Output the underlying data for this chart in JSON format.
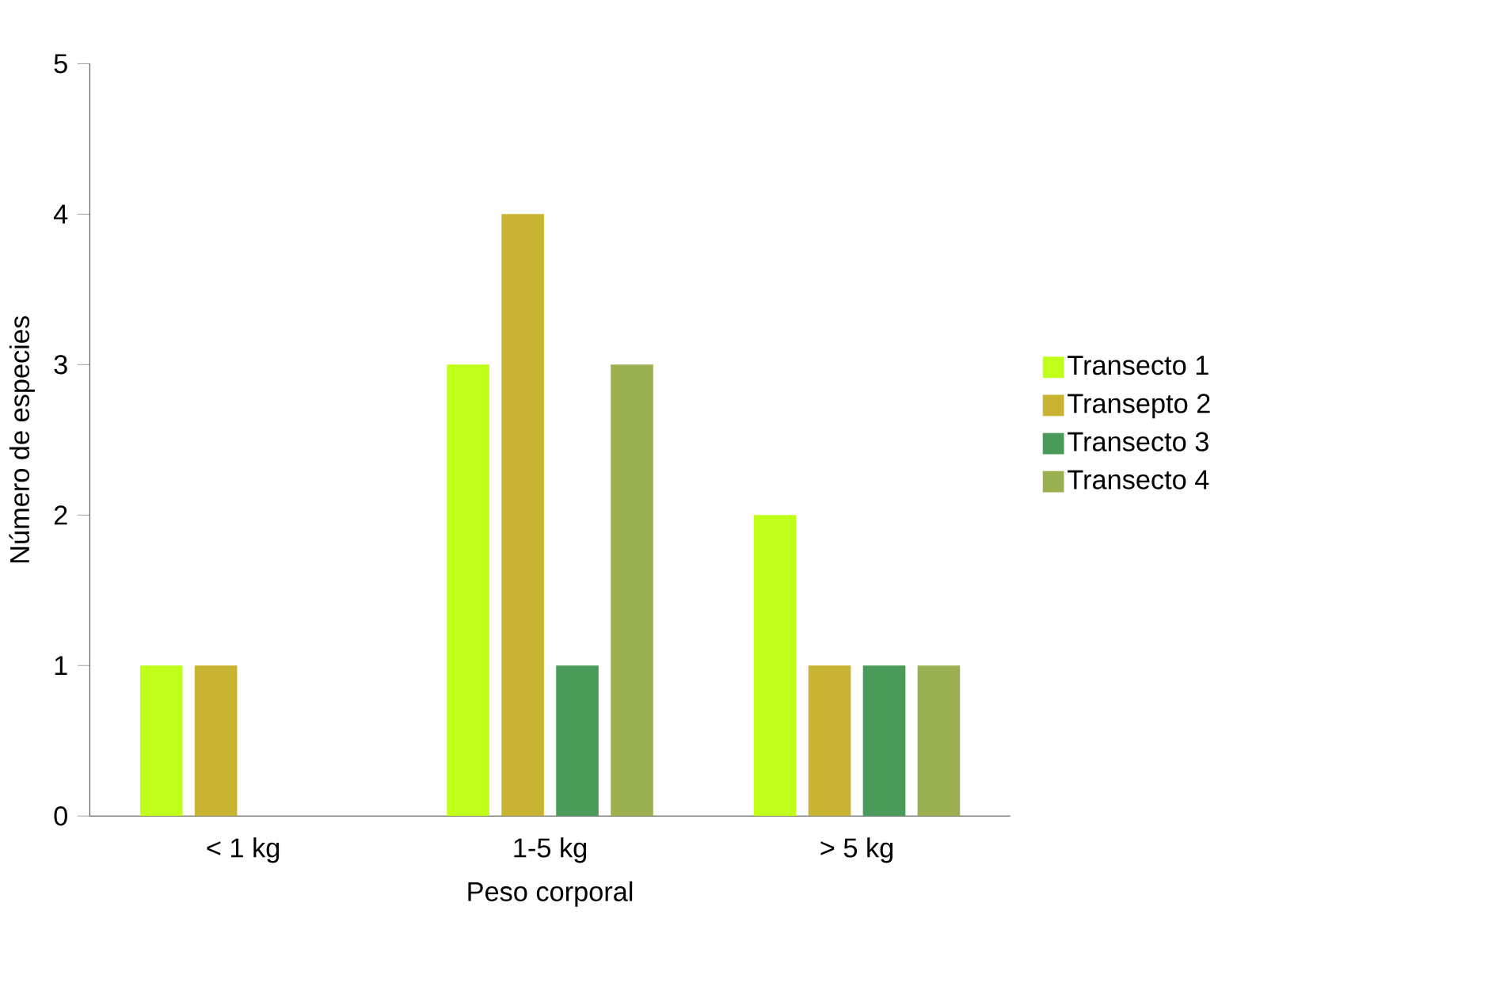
{
  "chart_data": {
    "type": "bar",
    "xlabel": "Peso corporal",
    "ylabel": "Número de especies",
    "categories": [
      "< 1 kg",
      "1-5 kg",
      "> 5 kg"
    ],
    "series": [
      {
        "name": "Transecto 1",
        "color": "#c0ff1a",
        "values": [
          1,
          3,
          2
        ]
      },
      {
        "name": "Transepto 2",
        "color": "#c8b432",
        "values": [
          1,
          4,
          1
        ]
      },
      {
        "name": "Transecto 3",
        "color": "#4a9a5a",
        "values": [
          null,
          1,
          1
        ]
      },
      {
        "name": "Transecto 4",
        "color": "#9ab050",
        "values": [
          null,
          3,
          1
        ]
      }
    ],
    "ylim": [
      0,
      5
    ],
    "yticks": [
      0,
      1,
      2,
      3,
      4,
      5
    ],
    "legend": "right",
    "grid": false
  }
}
